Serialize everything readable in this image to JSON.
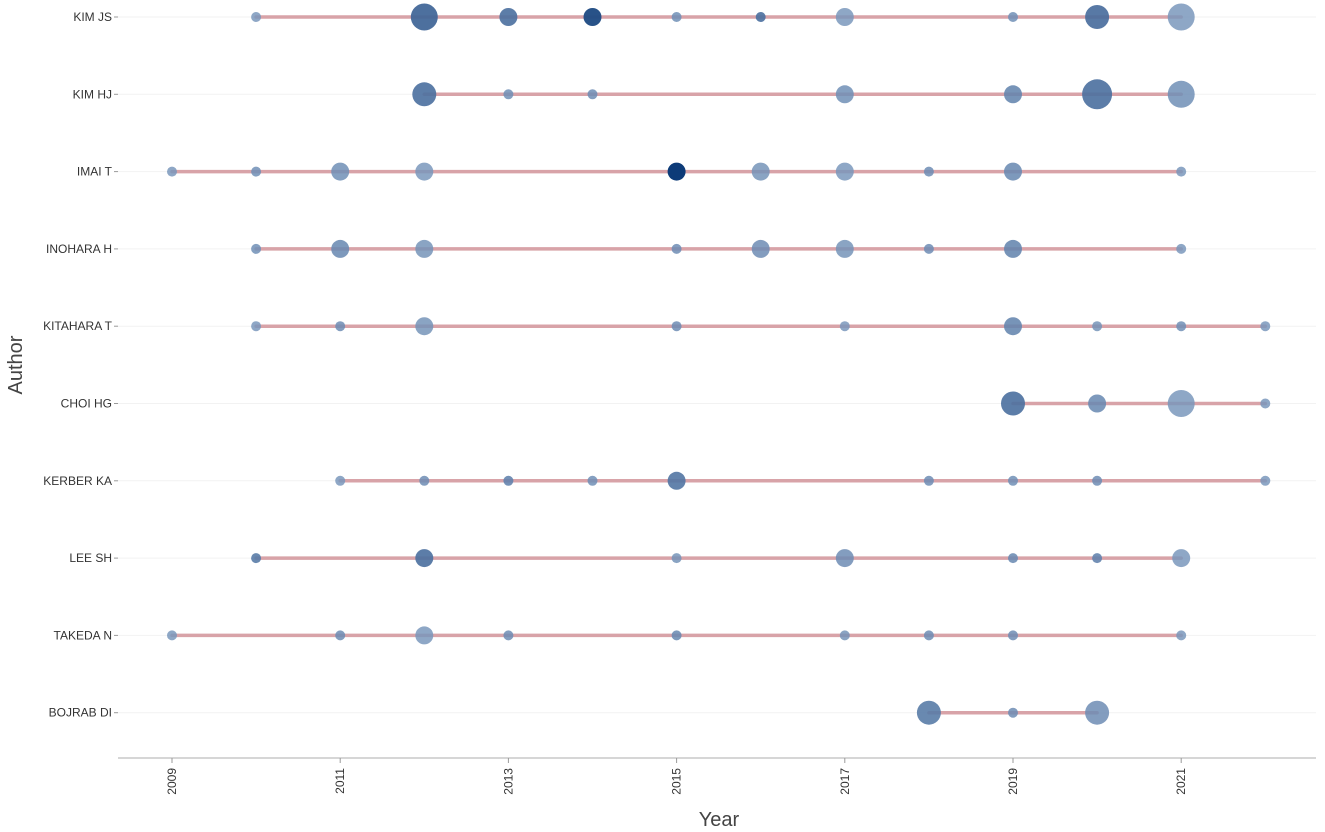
{
  "chart_data": {
    "type": "scatter",
    "subtype": "bubble-timeline",
    "title": "",
    "xlabel": "Year",
    "ylabel": "Author",
    "xlim": [
      2008.4,
      2022.6
    ],
    "x_ticks": [
      2009,
      2011,
      2013,
      2015,
      2017,
      2019,
      2021
    ],
    "grid": "horizontal-light",
    "colors": {
      "timeline": "#d8a3a8",
      "bubble_light": "#b2c7df",
      "bubble_dark": "#0d3b78",
      "axis": "#bdbdbd",
      "text": "#333333"
    },
    "size_legend": "none",
    "color_legend": "none",
    "authors": [
      {
        "name": "KIM JS",
        "span": [
          2010,
          2021
        ],
        "points": [
          {
            "year": 2010,
            "size": 1,
            "intensity": 0.35
          },
          {
            "year": 2012,
            "size": 4,
            "intensity": 0.7
          },
          {
            "year": 2013,
            "size": 2,
            "intensity": 0.62
          },
          {
            "year": 2014,
            "size": 2,
            "intensity": 0.88
          },
          {
            "year": 2015,
            "size": 1,
            "intensity": 0.4
          },
          {
            "year": 2016,
            "size": 1,
            "intensity": 0.62
          },
          {
            "year": 2017,
            "size": 2,
            "intensity": 0.35
          },
          {
            "year": 2019,
            "size": 1,
            "intensity": 0.4
          },
          {
            "year": 2020,
            "size": 3,
            "intensity": 0.65
          },
          {
            "year": 2021,
            "size": 4,
            "intensity": 0.35
          }
        ]
      },
      {
        "name": "KIM HJ",
        "span": [
          2012,
          2021
        ],
        "points": [
          {
            "year": 2012,
            "size": 3,
            "intensity": 0.62
          },
          {
            "year": 2013,
            "size": 1,
            "intensity": 0.4
          },
          {
            "year": 2014,
            "size": 1,
            "intensity": 0.42
          },
          {
            "year": 2017,
            "size": 2,
            "intensity": 0.4
          },
          {
            "year": 2019,
            "size": 2,
            "intensity": 0.48
          },
          {
            "year": 2020,
            "size": 5,
            "intensity": 0.62
          },
          {
            "year": 2021,
            "size": 4,
            "intensity": 0.4
          }
        ]
      },
      {
        "name": "IMAI T",
        "span": [
          2009,
          2021
        ],
        "points": [
          {
            "year": 2009,
            "size": 1,
            "intensity": 0.35
          },
          {
            "year": 2010,
            "size": 1,
            "intensity": 0.4
          },
          {
            "year": 2011,
            "size": 2,
            "intensity": 0.4
          },
          {
            "year": 2012,
            "size": 2,
            "intensity": 0.35
          },
          {
            "year": 2015,
            "size": 2,
            "intensity": 1.0
          },
          {
            "year": 2016,
            "size": 2,
            "intensity": 0.38
          },
          {
            "year": 2017,
            "size": 2,
            "intensity": 0.35
          },
          {
            "year": 2018,
            "size": 1,
            "intensity": 0.42
          },
          {
            "year": 2019,
            "size": 2,
            "intensity": 0.45
          },
          {
            "year": 2021,
            "size": 1,
            "intensity": 0.35
          }
        ]
      },
      {
        "name": "INOHARA H",
        "span": [
          2010,
          2021
        ],
        "points": [
          {
            "year": 2010,
            "size": 1,
            "intensity": 0.4
          },
          {
            "year": 2011,
            "size": 2,
            "intensity": 0.45
          },
          {
            "year": 2012,
            "size": 2,
            "intensity": 0.38
          },
          {
            "year": 2015,
            "size": 1,
            "intensity": 0.42
          },
          {
            "year": 2016,
            "size": 2,
            "intensity": 0.42
          },
          {
            "year": 2017,
            "size": 2,
            "intensity": 0.38
          },
          {
            "year": 2018,
            "size": 1,
            "intensity": 0.42
          },
          {
            "year": 2019,
            "size": 2,
            "intensity": 0.48
          },
          {
            "year": 2021,
            "size": 1,
            "intensity": 0.35
          }
        ]
      },
      {
        "name": "KITAHARA T",
        "span": [
          2010,
          2022
        ],
        "points": [
          {
            "year": 2010,
            "size": 1,
            "intensity": 0.35
          },
          {
            "year": 2011,
            "size": 1,
            "intensity": 0.42
          },
          {
            "year": 2012,
            "size": 2,
            "intensity": 0.38
          },
          {
            "year": 2015,
            "size": 1,
            "intensity": 0.42
          },
          {
            "year": 2017,
            "size": 1,
            "intensity": 0.35
          },
          {
            "year": 2019,
            "size": 2,
            "intensity": 0.48
          },
          {
            "year": 2020,
            "size": 1,
            "intensity": 0.38
          },
          {
            "year": 2021,
            "size": 1,
            "intensity": 0.4
          },
          {
            "year": 2022,
            "size": 1,
            "intensity": 0.35
          }
        ]
      },
      {
        "name": "CHOI HG",
        "span": [
          2019,
          2022
        ],
        "points": [
          {
            "year": 2019,
            "size": 3,
            "intensity": 0.62
          },
          {
            "year": 2020,
            "size": 2,
            "intensity": 0.45
          },
          {
            "year": 2021,
            "size": 4,
            "intensity": 0.35
          },
          {
            "year": 2022,
            "size": 1,
            "intensity": 0.35
          }
        ]
      },
      {
        "name": "KERBER KA",
        "span": [
          2011,
          2022
        ],
        "points": [
          {
            "year": 2011,
            "size": 1,
            "intensity": 0.35
          },
          {
            "year": 2012,
            "size": 1,
            "intensity": 0.42
          },
          {
            "year": 2013,
            "size": 1,
            "intensity": 0.5
          },
          {
            "year": 2014,
            "size": 1,
            "intensity": 0.4
          },
          {
            "year": 2015,
            "size": 2,
            "intensity": 0.58
          },
          {
            "year": 2018,
            "size": 1,
            "intensity": 0.42
          },
          {
            "year": 2019,
            "size": 1,
            "intensity": 0.4
          },
          {
            "year": 2020,
            "size": 1,
            "intensity": 0.42
          },
          {
            "year": 2022,
            "size": 1,
            "intensity": 0.35
          }
        ]
      },
      {
        "name": "LEE SH",
        "span": [
          2010,
          2021
        ],
        "points": [
          {
            "year": 2010,
            "size": 1,
            "intensity": 0.55
          },
          {
            "year": 2012,
            "size": 2,
            "intensity": 0.62
          },
          {
            "year": 2015,
            "size": 1,
            "intensity": 0.38
          },
          {
            "year": 2017,
            "size": 2,
            "intensity": 0.42
          },
          {
            "year": 2019,
            "size": 1,
            "intensity": 0.45
          },
          {
            "year": 2020,
            "size": 1,
            "intensity": 0.5
          },
          {
            "year": 2021,
            "size": 2,
            "intensity": 0.35
          }
        ]
      },
      {
        "name": "TAKEDA N",
        "span": [
          2009,
          2021
        ],
        "points": [
          {
            "year": 2009,
            "size": 1,
            "intensity": 0.35
          },
          {
            "year": 2011,
            "size": 1,
            "intensity": 0.42
          },
          {
            "year": 2012,
            "size": 2,
            "intensity": 0.35
          },
          {
            "year": 2013,
            "size": 1,
            "intensity": 0.42
          },
          {
            "year": 2015,
            "size": 1,
            "intensity": 0.45
          },
          {
            "year": 2017,
            "size": 1,
            "intensity": 0.38
          },
          {
            "year": 2018,
            "size": 1,
            "intensity": 0.42
          },
          {
            "year": 2019,
            "size": 1,
            "intensity": 0.42
          },
          {
            "year": 2021,
            "size": 1,
            "intensity": 0.35
          }
        ]
      },
      {
        "name": "BOJRAB DI",
        "span": [
          2018,
          2020
        ],
        "points": [
          {
            "year": 2018,
            "size": 3,
            "intensity": 0.55
          },
          {
            "year": 2019,
            "size": 1,
            "intensity": 0.42
          },
          {
            "year": 2020,
            "size": 3,
            "intensity": 0.42
          }
        ]
      }
    ]
  }
}
